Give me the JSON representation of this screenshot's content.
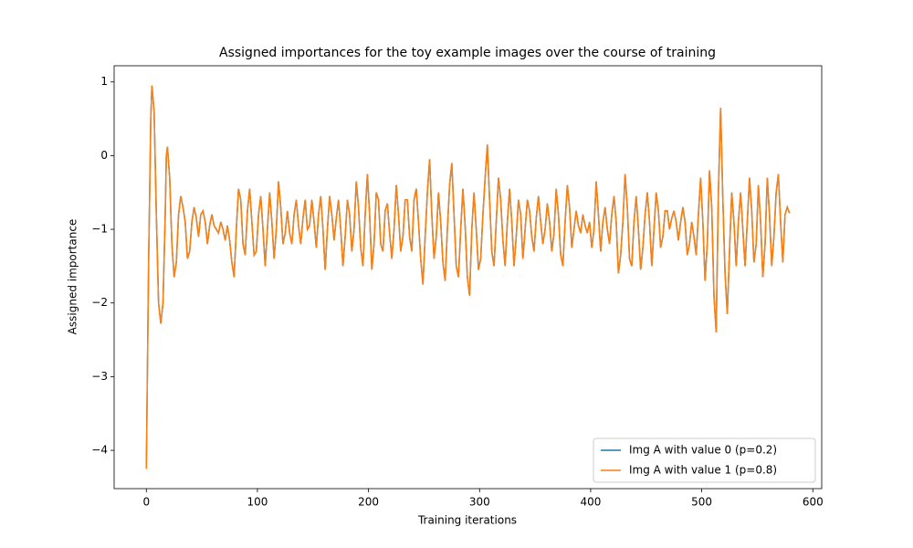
{
  "chart_data": {
    "type": "line",
    "title": "Assigned importances for the toy example images over the course of training",
    "x_label": "Training iterations",
    "y_label": "Assigned importance",
    "xlim": [
      -29,
      608
    ],
    "ylim": [
      -4.52,
      1.22
    ],
    "xticks": [
      0,
      100,
      200,
      300,
      400,
      500,
      600
    ],
    "yticks": [
      {
        "value": -4,
        "label": "−4"
      },
      {
        "value": -3,
        "label": "−3"
      },
      {
        "value": -2,
        "label": "−2"
      },
      {
        "value": -1,
        "label": "−1"
      },
      0,
      1
    ],
    "legend": "lower right",
    "x": [
      0,
      2,
      4,
      5,
      7,
      9,
      11,
      13,
      15,
      17,
      18,
      19,
      21,
      23,
      25,
      27,
      29,
      31,
      33,
      35,
      37,
      39,
      41,
      43,
      45,
      47,
      49,
      51,
      53,
      55,
      57,
      59,
      61,
      63,
      65,
      67,
      69,
      71,
      73,
      75,
      77,
      79,
      81,
      83,
      85,
      87,
      89,
      91,
      93,
      95,
      97,
      99,
      101,
      103,
      105,
      107,
      109,
      111,
      113,
      115,
      117,
      119,
      121,
      123,
      125,
      127,
      129,
      131,
      133,
      135,
      137,
      139,
      141,
      143,
      145,
      147,
      149,
      151,
      153,
      155,
      157,
      159,
      161,
      163,
      165,
      167,
      169,
      171,
      173,
      175,
      177,
      179,
      181,
      183,
      185,
      187,
      189,
      191,
      193,
      195,
      197,
      199,
      201,
      203,
      205,
      207,
      209,
      211,
      213,
      215,
      217,
      219,
      221,
      223,
      225,
      227,
      229,
      231,
      233,
      235,
      237,
      239,
      241,
      243,
      245,
      247,
      249,
      251,
      253,
      255,
      257,
      259,
      261,
      263,
      265,
      267,
      269,
      271,
      273,
      275,
      277,
      279,
      281,
      283,
      285,
      287,
      289,
      291,
      293,
      295,
      297,
      299,
      301,
      303,
      305,
      307,
      309,
      311,
      313,
      315,
      317,
      319,
      321,
      323,
      325,
      327,
      329,
      331,
      333,
      335,
      337,
      339,
      341,
      343,
      345,
      347,
      349,
      351,
      353,
      355,
      357,
      359,
      361,
      363,
      365,
      367,
      369,
      371,
      373,
      375,
      377,
      379,
      381,
      383,
      385,
      387,
      389,
      391,
      393,
      395,
      397,
      399,
      401,
      403,
      405,
      407,
      409,
      411,
      413,
      415,
      417,
      419,
      421,
      423,
      425,
      427,
      429,
      431,
      433,
      435,
      437,
      439,
      441,
      443,
      445,
      447,
      449,
      451,
      453,
      455,
      457,
      459,
      461,
      463,
      465,
      467,
      469,
      471,
      473,
      475,
      477,
      479,
      481,
      483,
      485,
      487,
      489,
      491,
      493,
      495,
      497,
      499,
      501,
      503,
      505,
      507,
      509,
      511,
      513,
      515,
      517,
      519,
      521,
      523,
      525,
      527,
      529,
      531,
      533,
      535,
      537,
      539,
      541,
      543,
      545,
      547,
      549,
      551,
      553,
      555,
      557,
      559,
      561,
      563,
      565,
      567,
      569,
      571,
      573,
      575,
      577,
      579
    ],
    "series": [
      {
        "name": "Img A with value 0 (p=0.2)",
        "color": "#1f77b4",
        "values": [
          -4.25,
          -1.5,
          0.5,
          0.95,
          0.6,
          -0.8,
          -2.0,
          -2.28,
          -2.0,
          -0.8,
          0.0,
          0.12,
          -0.3,
          -1.2,
          -1.65,
          -1.45,
          -0.8,
          -0.55,
          -0.7,
          -0.9,
          -1.4,
          -1.3,
          -0.9,
          -0.7,
          -0.85,
          -1.1,
          -0.8,
          -0.75,
          -0.9,
          -1.2,
          -0.95,
          -0.8,
          -0.95,
          -1.0,
          -1.05,
          -0.9,
          -1.0,
          -1.15,
          -0.95,
          -1.15,
          -1.45,
          -1.65,
          -1.0,
          -0.45,
          -0.6,
          -1.2,
          -1.35,
          -0.75,
          -0.45,
          -0.9,
          -1.35,
          -1.3,
          -0.8,
          -0.55,
          -1.0,
          -1.5,
          -1.0,
          -0.5,
          -0.9,
          -1.4,
          -1.0,
          -0.35,
          -0.7,
          -1.2,
          -1.05,
          -0.75,
          -1.05,
          -1.2,
          -0.8,
          -0.6,
          -0.95,
          -1.2,
          -0.85,
          -0.6,
          -1.0,
          -0.95,
          -0.6,
          -0.9,
          -1.25,
          -0.8,
          -0.55,
          -1.0,
          -1.55,
          -1.0,
          -0.55,
          -0.8,
          -1.15,
          -0.85,
          -0.6,
          -1.0,
          -1.5,
          -1.1,
          -0.6,
          -0.8,
          -1.3,
          -1.0,
          -0.35,
          -0.7,
          -1.25,
          -1.5,
          -0.8,
          -0.25,
          -0.8,
          -1.55,
          -1.2,
          -0.5,
          -0.6,
          -1.2,
          -1.3,
          -0.75,
          -0.65,
          -1.05,
          -1.4,
          -1.0,
          -0.4,
          -0.8,
          -1.3,
          -1.1,
          -0.6,
          -0.6,
          -1.1,
          -1.3,
          -0.6,
          -0.45,
          -0.9,
          -1.4,
          -1.75,
          -1.1,
          -0.5,
          -0.05,
          -0.8,
          -1.4,
          -1.1,
          -0.5,
          -0.9,
          -1.45,
          -1.7,
          -1.0,
          -0.4,
          -0.1,
          -0.8,
          -1.5,
          -1.65,
          -1.0,
          -0.45,
          -0.95,
          -1.65,
          -1.9,
          -1.0,
          -0.5,
          -1.0,
          -1.55,
          -1.4,
          -0.8,
          -0.3,
          0.15,
          -0.6,
          -1.3,
          -1.5,
          -0.9,
          -0.3,
          -0.6,
          -1.15,
          -1.5,
          -0.9,
          -0.45,
          -0.9,
          -1.5,
          -1.1,
          -0.6,
          -0.8,
          -1.4,
          -1.0,
          -0.6,
          -0.75,
          -1.1,
          -1.3,
          -0.85,
          -0.55,
          -0.9,
          -1.2,
          -1.0,
          -0.65,
          -0.9,
          -1.3,
          -1.05,
          -0.45,
          -0.8,
          -1.35,
          -1.5,
          -0.9,
          -0.4,
          -0.7,
          -1.25,
          -1.0,
          -0.75,
          -0.95,
          -1.05,
          -0.8,
          -0.95,
          -1.05,
          -0.9,
          -1.25,
          -1.0,
          -0.35,
          -0.8,
          -1.3,
          -0.9,
          -0.7,
          -1.0,
          -1.2,
          -0.8,
          -0.55,
          -0.9,
          -1.6,
          -1.35,
          -0.9,
          -0.25,
          -0.7,
          -1.4,
          -1.5,
          -0.9,
          -0.55,
          -1.0,
          -1.55,
          -1.25,
          -0.8,
          -0.5,
          -0.9,
          -1.5,
          -1.0,
          -0.5,
          -0.75,
          -1.25,
          -1.1,
          -0.75,
          -0.75,
          -1.0,
          -0.85,
          -0.75,
          -0.9,
          -1.15,
          -0.9,
          -0.7,
          -0.9,
          -1.35,
          -1.2,
          -0.9,
          -1.1,
          -1.35,
          -0.8,
          -0.3,
          -0.9,
          -1.7,
          -1.2,
          -0.2,
          -0.7,
          -1.9,
          -2.4,
          -0.5,
          0.65,
          -0.6,
          -1.6,
          -2.15,
          -1.3,
          -0.5,
          -0.9,
          -1.5,
          -0.9,
          -0.5,
          -1.0,
          -1.5,
          -0.9,
          -0.3,
          -0.75,
          -1.45,
          -1.2,
          -0.4,
          -0.9,
          -1.65,
          -1.2,
          -0.3,
          -0.8,
          -1.5,
          -1.1,
          -0.5,
          -0.25,
          -0.9,
          -1.45,
          -0.8,
          -0.7,
          -0.78
        ]
      },
      {
        "name": "Img A with value 1 (p=0.8)",
        "color": "#ff7f0e",
        "values": [
          -4.25,
          -1.5,
          0.5,
          0.95,
          0.6,
          -0.8,
          -2.0,
          -2.28,
          -2.0,
          -0.8,
          0.0,
          0.12,
          -0.3,
          -1.2,
          -1.65,
          -1.45,
          -0.8,
          -0.55,
          -0.7,
          -0.9,
          -1.4,
          -1.3,
          -0.9,
          -0.7,
          -0.85,
          -1.1,
          -0.8,
          -0.75,
          -0.9,
          -1.2,
          -0.95,
          -0.8,
          -0.95,
          -1.0,
          -1.05,
          -0.9,
          -1.0,
          -1.15,
          -0.95,
          -1.15,
          -1.45,
          -1.65,
          -1.0,
          -0.45,
          -0.6,
          -1.2,
          -1.35,
          -0.75,
          -0.45,
          -0.9,
          -1.35,
          -1.3,
          -0.8,
          -0.55,
          -1.0,
          -1.5,
          -1.0,
          -0.5,
          -0.9,
          -1.4,
          -1.0,
          -0.35,
          -0.7,
          -1.2,
          -1.05,
          -0.75,
          -1.05,
          -1.2,
          -0.8,
          -0.6,
          -0.95,
          -1.2,
          -0.85,
          -0.6,
          -1.0,
          -0.95,
          -0.6,
          -0.9,
          -1.25,
          -0.8,
          -0.55,
          -1.0,
          -1.55,
          -1.0,
          -0.55,
          -0.8,
          -1.15,
          -0.85,
          -0.6,
          -1.0,
          -1.5,
          -1.1,
          -0.6,
          -0.8,
          -1.3,
          -1.0,
          -0.35,
          -0.7,
          -1.25,
          -1.5,
          -0.8,
          -0.25,
          -0.8,
          -1.55,
          -1.2,
          -0.5,
          -0.6,
          -1.2,
          -1.3,
          -0.75,
          -0.65,
          -1.05,
          -1.4,
          -1.0,
          -0.4,
          -0.8,
          -1.3,
          -1.1,
          -0.6,
          -0.6,
          -1.1,
          -1.3,
          -0.6,
          -0.45,
          -0.9,
          -1.4,
          -1.75,
          -1.1,
          -0.5,
          -0.05,
          -0.8,
          -1.4,
          -1.1,
          -0.5,
          -0.9,
          -1.45,
          -1.7,
          -1.0,
          -0.4,
          -0.1,
          -0.8,
          -1.5,
          -1.65,
          -1.0,
          -0.45,
          -0.95,
          -1.65,
          -1.9,
          -1.0,
          -0.5,
          -1.0,
          -1.55,
          -1.4,
          -0.8,
          -0.3,
          0.15,
          -0.6,
          -1.3,
          -1.5,
          -0.9,
          -0.3,
          -0.6,
          -1.15,
          -1.5,
          -0.9,
          -0.45,
          -0.9,
          -1.5,
          -1.1,
          -0.6,
          -0.8,
          -1.4,
          -1.0,
          -0.6,
          -0.75,
          -1.1,
          -1.3,
          -0.85,
          -0.55,
          -0.9,
          -1.2,
          -1.0,
          -0.65,
          -0.9,
          -1.3,
          -1.05,
          -0.45,
          -0.8,
          -1.35,
          -1.5,
          -0.9,
          -0.4,
          -0.7,
          -1.25,
          -1.0,
          -0.75,
          -0.95,
          -1.05,
          -0.8,
          -0.95,
          -1.05,
          -0.9,
          -1.25,
          -1.0,
          -0.35,
          -0.8,
          -1.3,
          -0.9,
          -0.7,
          -1.0,
          -1.2,
          -0.8,
          -0.55,
          -0.9,
          -1.6,
          -1.35,
          -0.9,
          -0.25,
          -0.7,
          -1.4,
          -1.5,
          -0.9,
          -0.55,
          -1.0,
          -1.55,
          -1.25,
          -0.8,
          -0.5,
          -0.9,
          -1.5,
          -1.0,
          -0.5,
          -0.75,
          -1.25,
          -1.1,
          -0.75,
          -0.75,
          -1.0,
          -0.85,
          -0.75,
          -0.9,
          -1.15,
          -0.9,
          -0.7,
          -0.9,
          -1.35,
          -1.2,
          -0.9,
          -1.1,
          -1.35,
          -0.8,
          -0.3,
          -0.9,
          -1.7,
          -1.2,
          -0.2,
          -0.7,
          -1.9,
          -2.4,
          -0.5,
          0.65,
          -0.6,
          -1.6,
          -2.15,
          -1.3,
          -0.5,
          -0.9,
          -1.5,
          -0.9,
          -0.5,
          -1.0,
          -1.5,
          -0.9,
          -0.3,
          -0.75,
          -1.45,
          -1.2,
          -0.4,
          -0.9,
          -1.65,
          -1.2,
          -0.3,
          -0.8,
          -1.5,
          -1.1,
          -0.5,
          -0.25,
          -0.9,
          -1.45,
          -0.8,
          -0.7,
          -0.78
        ]
      }
    ]
  }
}
